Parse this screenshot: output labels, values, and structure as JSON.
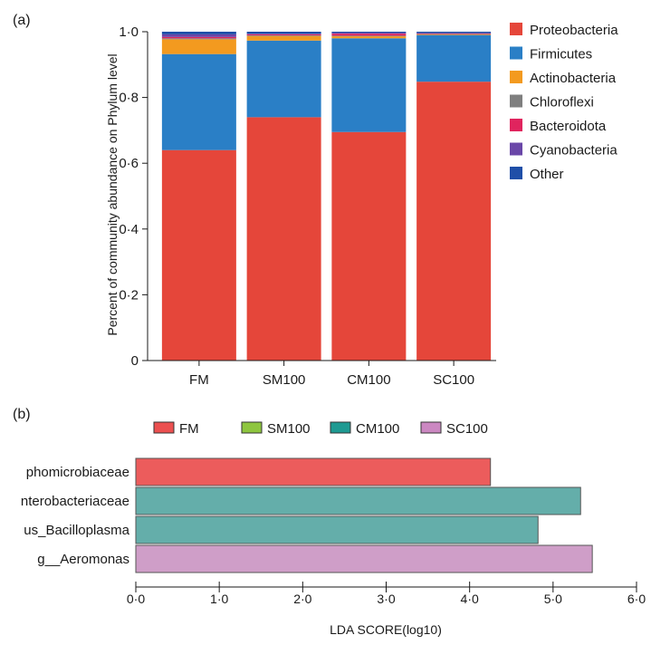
{
  "panels": {
    "a": "(a)",
    "b": "(b)"
  },
  "chart_data": [
    {
      "type": "bar",
      "stacked": true,
      "panel": "(a)",
      "title": "",
      "xlabel": "",
      "ylabel": "Percent of community abundance on Phylum level",
      "ylim": [
        0,
        1.0
      ],
      "yticks": [
        "0",
        "0·2",
        "0·4",
        "0·6",
        "0·8",
        "1·0"
      ],
      "ytick_values": [
        0,
        0.2,
        0.4,
        0.6,
        0.8,
        1.0
      ],
      "categories": [
        "FM",
        "SM100",
        "CM100",
        "SC100"
      ],
      "legend_position": "right",
      "series": [
        {
          "name": "Proteobacteria",
          "color": "#e5463a",
          "values": [
            0.64,
            0.74,
            0.695,
            0.848
          ]
        },
        {
          "name": "Firmicutes",
          "color": "#2a7fc6",
          "values": [
            0.292,
            0.233,
            0.285,
            0.142
          ]
        },
        {
          "name": "Actinobacteria",
          "color": "#f39a1f",
          "values": [
            0.045,
            0.014,
            0.006,
            0.002
          ]
        },
        {
          "name": "Chloroflexi",
          "color": "#7f7f7f",
          "values": [
            0.003,
            0.002,
            0.002,
            0.001
          ]
        },
        {
          "name": "Bacteroidota",
          "color": "#e0245e",
          "values": [
            0.004,
            0.003,
            0.006,
            0.002
          ]
        },
        {
          "name": "Cyanobacteria",
          "color": "#6a47a8",
          "values": [
            0.008,
            0.002,
            0.003,
            0.001
          ]
        },
        {
          "name": "Other",
          "color": "#1f4fa8",
          "values": [
            0.008,
            0.006,
            0.003,
            0.004
          ]
        }
      ]
    },
    {
      "type": "bar",
      "orientation": "horizontal",
      "panel": "(b)",
      "title": "",
      "xlabel": "LDA SCORE(log10)",
      "ylabel": "",
      "xlim": [
        0,
        6.0
      ],
      "xticks": [
        "0·0",
        "1·0",
        "2·0",
        "3·0",
        "4·0",
        "5·0",
        "6·0"
      ],
      "xtick_values": [
        0,
        1,
        2,
        3,
        4,
        5,
        6
      ],
      "legend_position": "top",
      "legend": [
        {
          "name": "FM",
          "color": "#ec5050"
        },
        {
          "name": "SM100",
          "color": "#8ec63f"
        },
        {
          "name": "CM100",
          "color": "#1e9a92"
        },
        {
          "name": "SC100",
          "color": "#cc88c2"
        }
      ],
      "categories": [
        "phomicrobiaceae",
        "nterobacteriaceae",
        "us_Bacilloplasma",
        "g__Aeromonas"
      ],
      "values": [
        4.25,
        5.33,
        4.82,
        5.47
      ],
      "groups": [
        "FM",
        "CM100",
        "CM100",
        "SC100"
      ],
      "bar_colors": [
        "#ec5c5c",
        "#64aeaa",
        "#64aeaa",
        "#cf9ec8"
      ]
    }
  ]
}
